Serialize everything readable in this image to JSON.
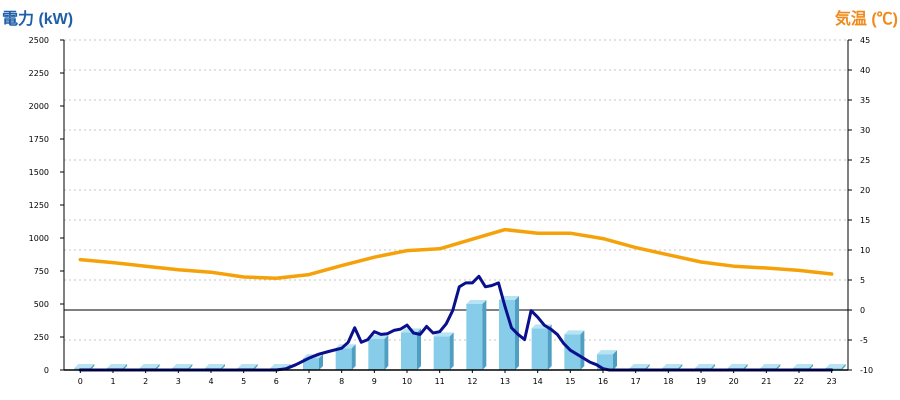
{
  "chart_data": {
    "type": "bar",
    "title": "",
    "left_axis": {
      "label": "電力 (kW)",
      "ylim": [
        0,
        2500
      ],
      "ticks": [
        0,
        250,
        500,
        750,
        1000,
        1250,
        1500,
        1750,
        2000,
        2250,
        2500
      ],
      "color": "#1f5fa8"
    },
    "right_axis": {
      "label": "気温 (℃)",
      "ylim": [
        -10,
        45
      ],
      "ticks": [
        -10,
        -5,
        0,
        5,
        10,
        15,
        20,
        25,
        30,
        35,
        40,
        45
      ],
      "color": "#f08a1c"
    },
    "categories": [
      "0",
      "1",
      "2",
      "3",
      "4",
      "5",
      "6",
      "7",
      "8",
      "9",
      "10",
      "11",
      "12",
      "13",
      "14",
      "15",
      "16",
      "17",
      "18",
      "19",
      "20",
      "21",
      "22",
      "23"
    ],
    "grid": "horizontal-dotted",
    "series": [
      {
        "kind": "bar",
        "axis": "left",
        "color": "#87cdea",
        "values": [
          0,
          0,
          0,
          0,
          0,
          0,
          0,
          90,
          165,
          235,
          285,
          255,
          500,
          530,
          315,
          270,
          120,
          0,
          0,
          0,
          0,
          0,
          0,
          0
        ]
      },
      {
        "kind": "line",
        "axis": "left",
        "color": "#0a0f8c",
        "x": [
          0,
          0.5,
          1,
          1.5,
          2,
          2.5,
          3,
          3.5,
          4,
          4.5,
          5,
          5.5,
          6,
          6.3,
          6.6,
          7,
          7.3,
          7.6,
          8,
          8.2,
          8.4,
          8.6,
          8.8,
          9,
          9.2,
          9.4,
          9.6,
          9.8,
          10,
          10.2,
          10.4,
          10.6,
          10.8,
          11,
          11.2,
          11.4,
          11.6,
          11.8,
          12,
          12.2,
          12.4,
          12.6,
          12.8,
          13,
          13.2,
          13.4,
          13.6,
          13.8,
          14,
          14.2,
          14.4,
          14.6,
          14.8,
          15,
          15.2,
          15.4,
          15.6,
          15.8,
          16,
          16.2,
          16.4,
          16.6,
          17,
          17.5,
          18,
          19,
          20,
          21,
          22,
          23
        ],
        "values": [
          0,
          0,
          0,
          0,
          0,
          0,
          0,
          0,
          0,
          0,
          0,
          0,
          0,
          10,
          40,
          90,
          120,
          140,
          165,
          210,
          320,
          210,
          230,
          290,
          270,
          275,
          300,
          310,
          340,
          280,
          270,
          330,
          280,
          290,
          350,
          450,
          630,
          660,
          660,
          710,
          630,
          640,
          660,
          480,
          320,
          270,
          230,
          450,
          400,
          340,
          310,
          270,
          200,
          150,
          120,
          90,
          60,
          40,
          10,
          0,
          0,
          0,
          0,
          0,
          0,
          0,
          0,
          0,
          0,
          0
        ]
      },
      {
        "kind": "line",
        "axis": "right",
        "color": "#f5a20a",
        "values": [
          8.4,
          7.9,
          7.3,
          6.7,
          6.3,
          5.5,
          5.3,
          5.9,
          7.4,
          8.8,
          9.9,
          10.2,
          11.8,
          13.4,
          12.8,
          12.8,
          11.9,
          10.4,
          9.2,
          8.0,
          7.3,
          7.0,
          6.6,
          6.0
        ]
      }
    ]
  }
}
